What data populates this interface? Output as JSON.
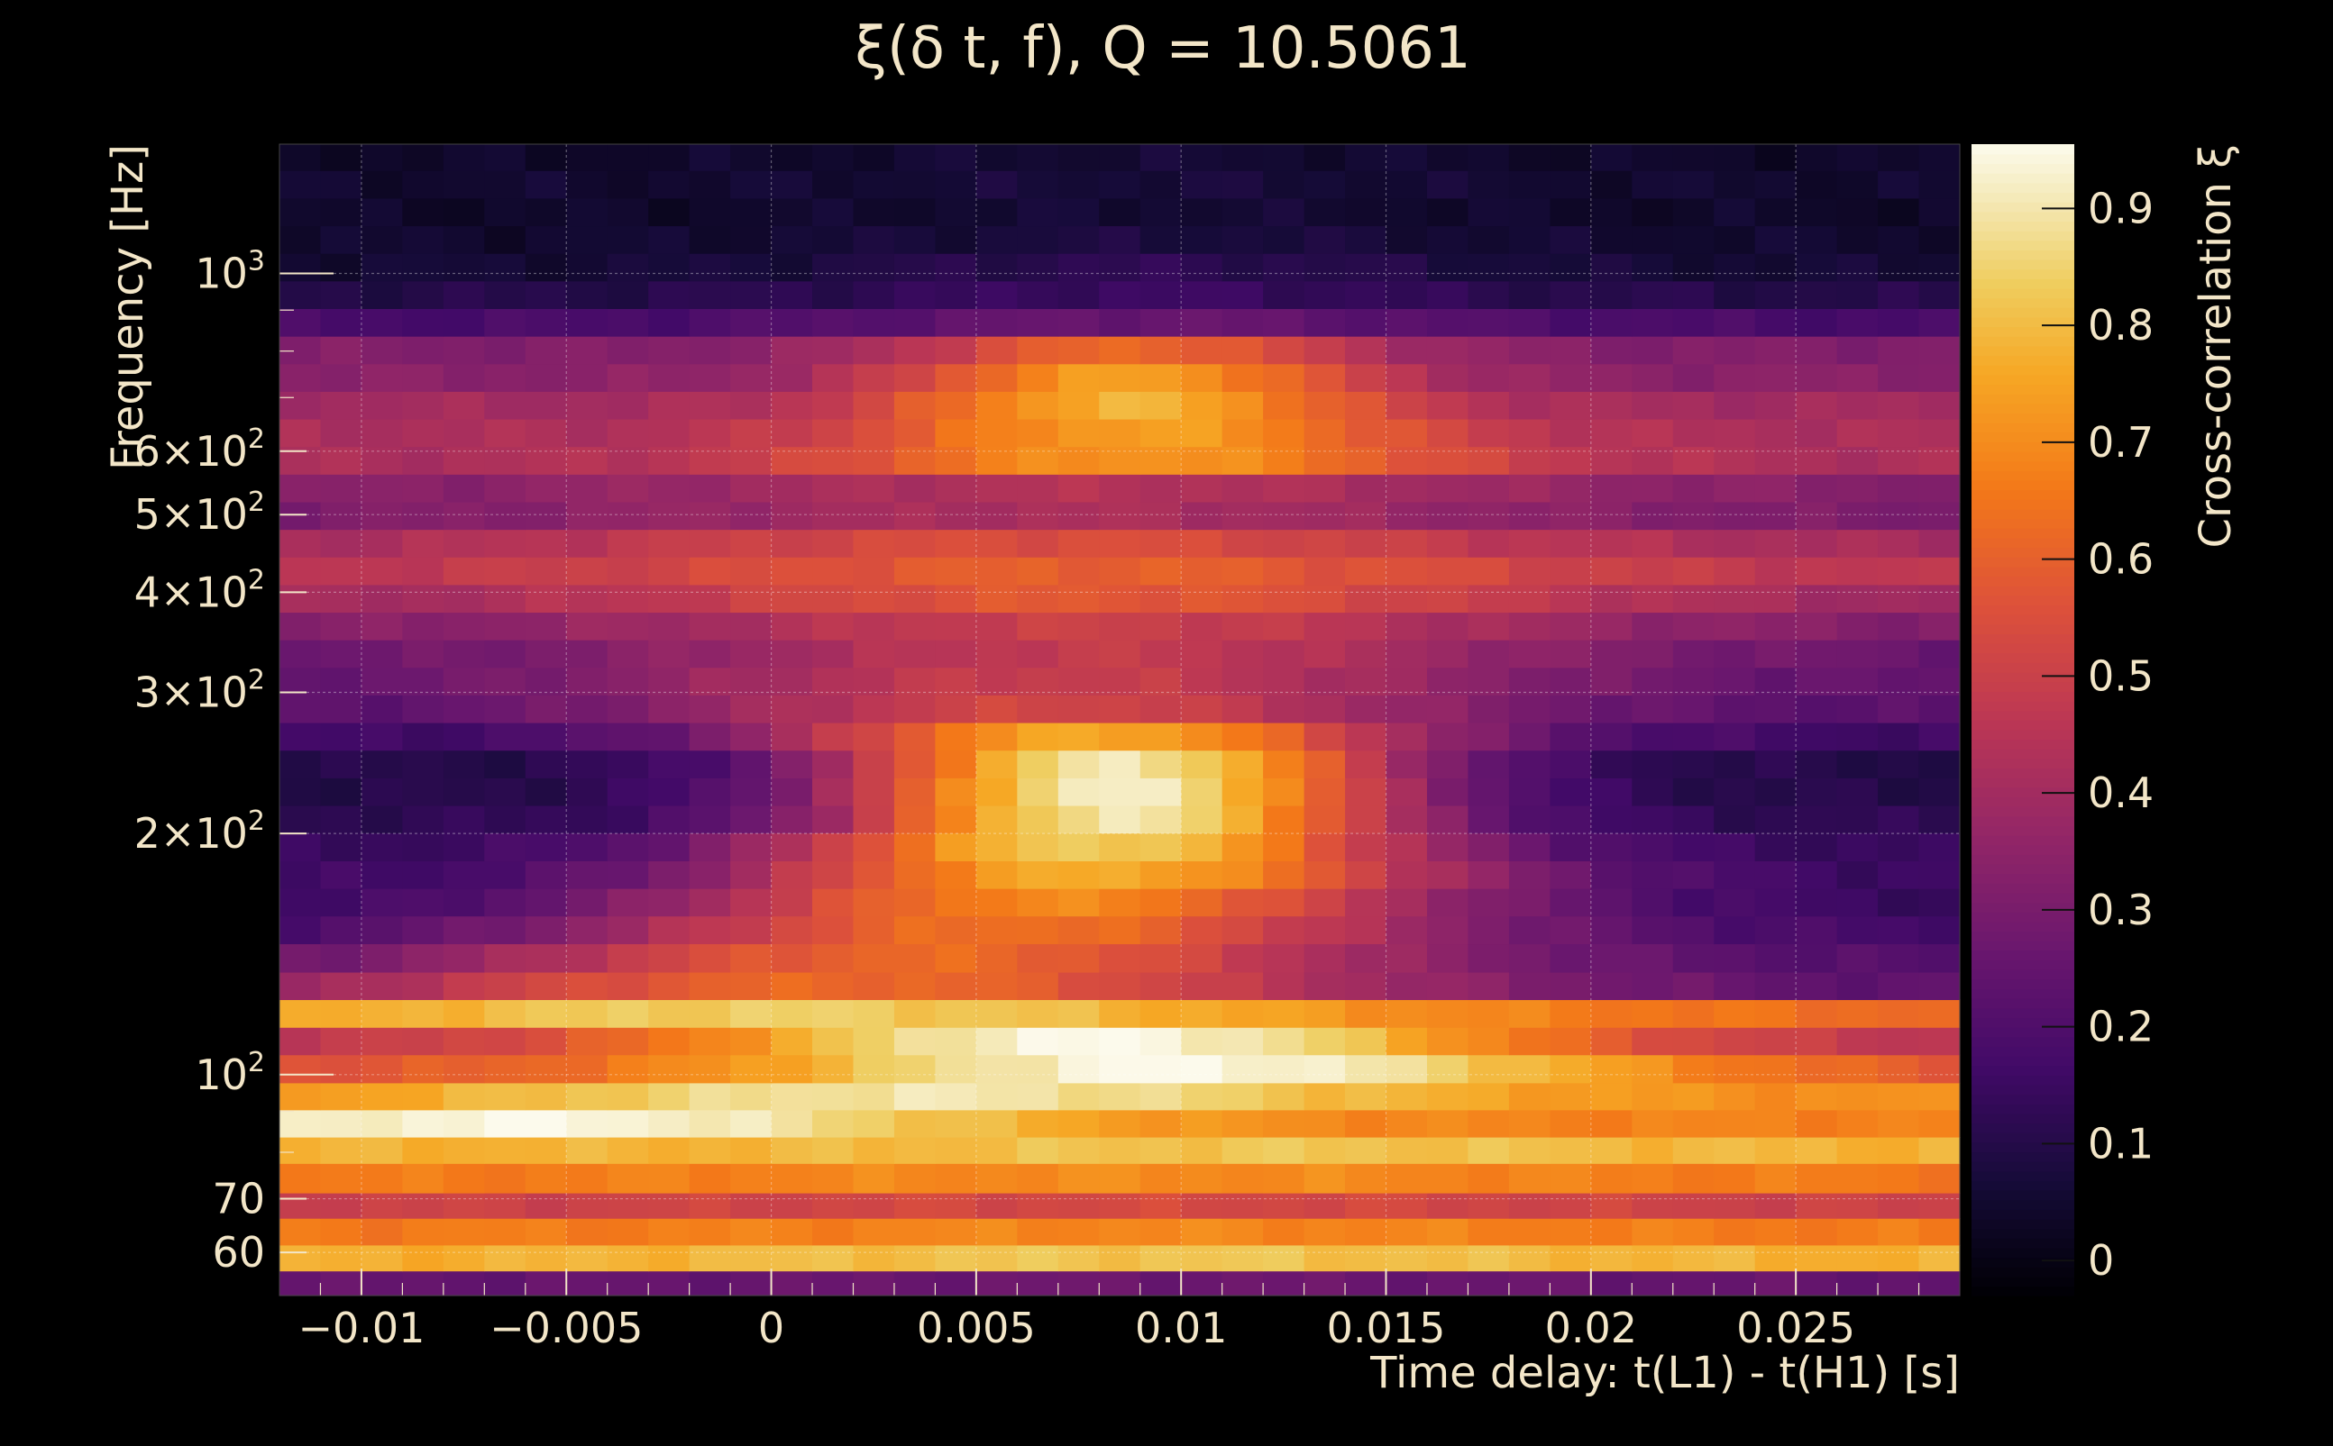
{
  "chart_data": {
    "type": "heatmap",
    "title": "ξ(δ t, f), Q = 10.5061",
    "xlabel": "Time delay: t(L1) - t(H1) [s]",
    "ylabel": "Frequency [Hz]",
    "colorbar_label": "Cross-correlation ξ",
    "x_range": [
      -0.012,
      0.029
    ],
    "y_range": [
      53,
      1450
    ],
    "y_scale": "log",
    "color_range": [
      -0.03,
      0.955
    ],
    "colormap": "inferno",
    "grid": true,
    "x_ticks": [
      {
        "value": -0.01,
        "label": "−0.01"
      },
      {
        "value": -0.005,
        "label": "−0.005"
      },
      {
        "value": 0,
        "label": "0"
      },
      {
        "value": 0.005,
        "label": "0.005"
      },
      {
        "value": 0.01,
        "label": "0.01"
      },
      {
        "value": 0.015,
        "label": "0.015"
      },
      {
        "value": 0.02,
        "label": "0.02"
      },
      {
        "value": 0.025,
        "label": "0.025"
      }
    ],
    "y_ticks": [
      {
        "value": 60,
        "label": "60"
      },
      {
        "value": 70,
        "label": "70"
      },
      {
        "value": 100,
        "label": "10",
        "sup": "2"
      },
      {
        "value": 200,
        "label": "2×10",
        "sup": "2"
      },
      {
        "value": 300,
        "label": "3×10",
        "sup": "2"
      },
      {
        "value": 400,
        "label": "4×10",
        "sup": "2"
      },
      {
        "value": 500,
        "label": "5×10",
        "sup": "2"
      },
      {
        "value": 600,
        "label": "6×10",
        "sup": "2"
      },
      {
        "value": 1000,
        "label": "10",
        "sup": "3"
      }
    ],
    "colorbar_ticks": [
      {
        "value": 0,
        "label": "0"
      },
      {
        "value": 0.1,
        "label": "0.1"
      },
      {
        "value": 0.2,
        "label": "0.2"
      },
      {
        "value": 0.3,
        "label": "0.3"
      },
      {
        "value": 0.4,
        "label": "0.4"
      },
      {
        "value": 0.5,
        "label": "0.5"
      },
      {
        "value": 0.6,
        "label": "0.6"
      },
      {
        "value": 0.7,
        "label": "0.7"
      },
      {
        "value": 0.8,
        "label": "0.8"
      },
      {
        "value": 0.9,
        "label": "0.9"
      }
    ],
    "n_time_bins": 41,
    "row_profiles": [
      {
        "f_low": 53,
        "f_high": 56.9,
        "base": 0.25,
        "peak_dt": 0.009,
        "amp": 0.02,
        "width": 0.01
      },
      {
        "f_low": 56.9,
        "f_high": 61.3,
        "base": 0.77,
        "peak_dt": 0.009,
        "amp": 0.05,
        "width": 0.012
      },
      {
        "f_low": 61.3,
        "f_high": 66.2,
        "base": 0.66,
        "peak_dt": 0.009,
        "amp": 0.03,
        "width": 0.012
      },
      {
        "f_low": 66.2,
        "f_high": 71.2,
        "base": 0.5,
        "peak_dt": 0.009,
        "amp": 0.03,
        "width": 0.012
      },
      {
        "f_low": 71.2,
        "f_high": 77.5,
        "base": 0.66,
        "peak_dt": 0.009,
        "amp": 0.04,
        "width": 0.012
      },
      {
        "f_low": 77.5,
        "f_high": 83.6,
        "base": 0.78,
        "peak_dt": 0.012,
        "amp": 0.04,
        "width": 0.01
      },
      {
        "f_low": 83.6,
        "f_high": 90.4,
        "base": 0.68,
        "peak_dt": -0.006,
        "amp": 0.27,
        "width": 0.012
      },
      {
        "f_low": 90.4,
        "f_high": 97.7,
        "base": 0.7,
        "peak_dt": 0.004,
        "amp": 0.2,
        "width": 0.012
      },
      {
        "f_low": 97.7,
        "f_high": 105.9,
        "base": 0.55,
        "peak_dt": 0.01,
        "amp": 0.4,
        "width": 0.012
      },
      {
        "f_low": 105.9,
        "f_high": 114.6,
        "base": 0.45,
        "peak_dt": 0.008,
        "amp": 0.5,
        "width": 0.011
      },
      {
        "f_low": 114.6,
        "f_high": 124.1,
        "base": 0.62,
        "peak_dt": 0.0,
        "amp": 0.22,
        "width": 0.016
      },
      {
        "f_low": 124.1,
        "f_high": 134.3,
        "base": 0.22,
        "peak_dt": 0.002,
        "amp": 0.4,
        "width": 0.014
      },
      {
        "f_low": 134.3,
        "f_high": 145.7,
        "base": 0.2,
        "peak_dt": 0.004,
        "amp": 0.42,
        "width": 0.012
      },
      {
        "f_low": 145.7,
        "f_high": 157.8,
        "base": 0.16,
        "peak_dt": 0.006,
        "amp": 0.48,
        "width": 0.011
      },
      {
        "f_low": 157.8,
        "f_high": 170.8,
        "base": 0.14,
        "peak_dt": 0.007,
        "amp": 0.55,
        "width": 0.01
      },
      {
        "f_low": 170.8,
        "f_high": 184.9,
        "base": 0.15,
        "peak_dt": 0.008,
        "amp": 0.62,
        "width": 0.009
      },
      {
        "f_low": 184.9,
        "f_high": 200.3,
        "base": 0.14,
        "peak_dt": 0.008,
        "amp": 0.7,
        "width": 0.008
      },
      {
        "f_low": 200.3,
        "f_high": 216.8,
        "base": 0.12,
        "peak_dt": 0.0085,
        "amp": 0.78,
        "width": 0.007
      },
      {
        "f_low": 216.8,
        "f_high": 234.7,
        "base": 0.1,
        "peak_dt": 0.0085,
        "amp": 0.82,
        "width": 0.007
      },
      {
        "f_low": 234.7,
        "f_high": 254.1,
        "base": 0.1,
        "peak_dt": 0.0085,
        "amp": 0.8,
        "width": 0.007
      },
      {
        "f_low": 254.1,
        "f_high": 275.1,
        "base": 0.16,
        "peak_dt": 0.008,
        "amp": 0.6,
        "width": 0.008
      },
      {
        "f_low": 275.1,
        "f_high": 297.8,
        "base": 0.22,
        "peak_dt": 0.007,
        "amp": 0.3,
        "width": 0.01
      },
      {
        "f_low": 297.8,
        "f_high": 322.4,
        "base": 0.24,
        "peak_dt": 0.007,
        "amp": 0.25,
        "width": 0.011
      },
      {
        "f_low": 322.4,
        "f_high": 349.0,
        "base": 0.26,
        "peak_dt": 0.008,
        "amp": 0.22,
        "width": 0.011
      },
      {
        "f_low": 349.0,
        "f_high": 377.8,
        "base": 0.32,
        "peak_dt": 0.008,
        "amp": 0.18,
        "width": 0.011
      },
      {
        "f_low": 377.8,
        "f_high": 409.0,
        "base": 0.38,
        "peak_dt": 0.008,
        "amp": 0.2,
        "width": 0.012
      },
      {
        "f_low": 409.0,
        "f_high": 442.8,
        "base": 0.45,
        "peak_dt": 0.008,
        "amp": 0.15,
        "width": 0.012
      },
      {
        "f_low": 442.8,
        "f_high": 479.3,
        "base": 0.4,
        "peak_dt": 0.007,
        "amp": 0.15,
        "width": 0.012
      },
      {
        "f_low": 479.3,
        "f_high": 518.9,
        "base": 0.3,
        "peak_dt": 0.007,
        "amp": 0.12,
        "width": 0.012
      },
      {
        "f_low": 518.9,
        "f_high": 561.7,
        "base": 0.32,
        "peak_dt": 0.008,
        "amp": 0.12,
        "width": 0.012
      },
      {
        "f_low": 561.7,
        "f_high": 608.1,
        "base": 0.42,
        "peak_dt": 0.009,
        "amp": 0.3,
        "width": 0.008
      },
      {
        "f_low": 608.1,
        "f_high": 658.3,
        "base": 0.42,
        "peak_dt": 0.009,
        "amp": 0.32,
        "width": 0.007
      },
      {
        "f_low": 658.3,
        "f_high": 712.7,
        "base": 0.4,
        "peak_dt": 0.0088,
        "amp": 0.38,
        "width": 0.006
      },
      {
        "f_low": 712.7,
        "f_high": 771.5,
        "base": 0.34,
        "peak_dt": 0.0088,
        "amp": 0.4,
        "width": 0.006
      },
      {
        "f_low": 771.5,
        "f_high": 835.2,
        "base": 0.32,
        "peak_dt": 0.0088,
        "amp": 0.3,
        "width": 0.006
      },
      {
        "f_low": 835.2,
        "f_high": 904.2,
        "base": 0.18,
        "peak_dt": 0.009,
        "amp": 0.08,
        "width": 0.008
      },
      {
        "f_low": 904.2,
        "f_high": 978.9,
        "base": 0.1,
        "peak_dt": 0.009,
        "amp": 0.05,
        "width": 0.008
      },
      {
        "f_low": 978.9,
        "f_high": 1059.7,
        "base": 0.06,
        "peak_dt": 0.009,
        "amp": 0.06,
        "width": 0.008
      },
      {
        "f_low": 1059.7,
        "f_high": 1147.2,
        "base": 0.05,
        "peak_dt": 0.009,
        "amp": 0.03,
        "width": 0.008
      },
      {
        "f_low": 1147.2,
        "f_high": 1241.9,
        "base": 0.04,
        "peak_dt": 0.009,
        "amp": 0.02,
        "width": 0.008
      },
      {
        "f_low": 1241.9,
        "f_high": 1344.5,
        "base": 0.05,
        "peak_dt": 0.009,
        "amp": 0.02,
        "width": 0.008
      },
      {
        "f_low": 1344.5,
        "f_high": 1450,
        "base": 0.04,
        "peak_dt": 0.009,
        "amp": 0.02,
        "width": 0.008
      }
    ]
  }
}
